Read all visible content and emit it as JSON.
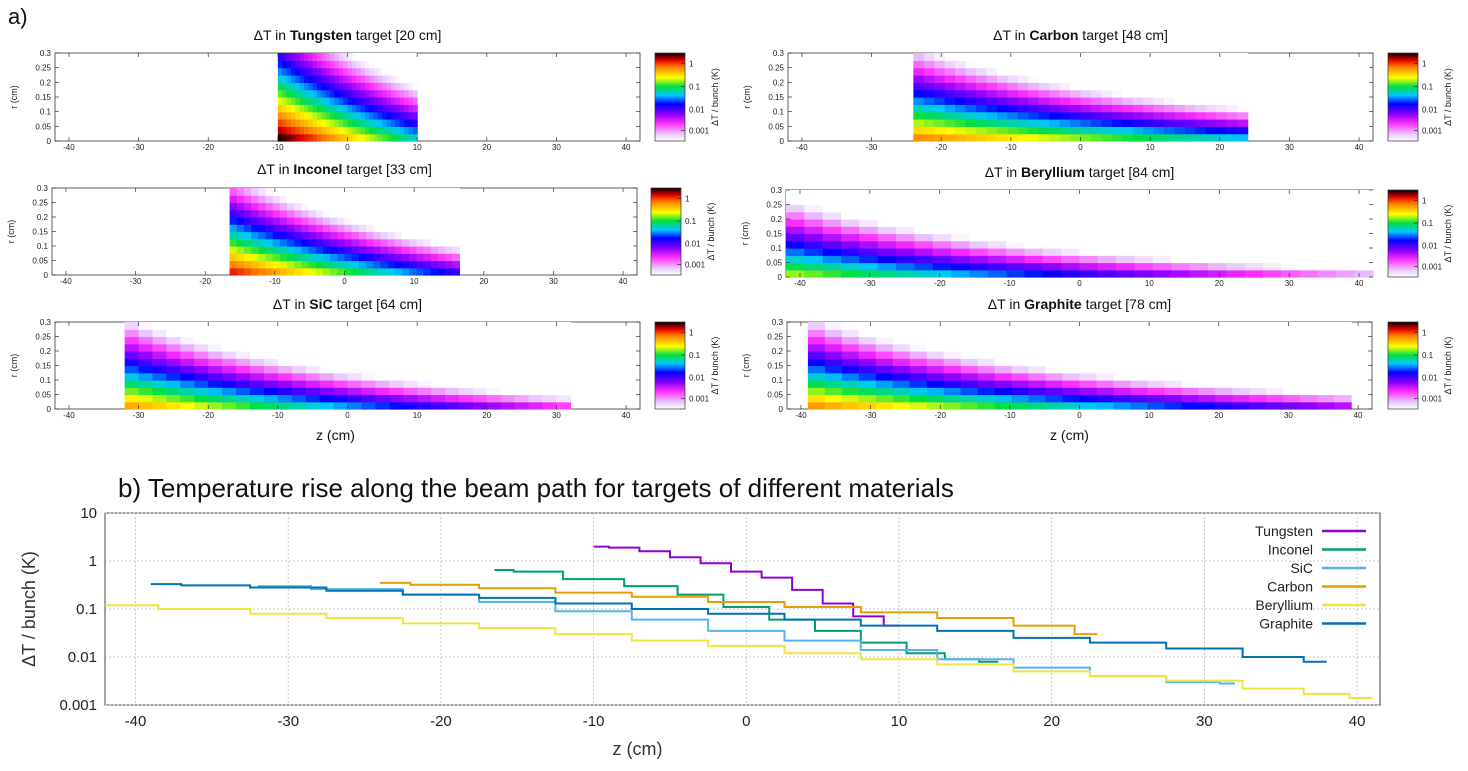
{
  "part_a_label": "a)",
  "chart_data": [
    {
      "type": "heatmap",
      "title_prefix": "ΔT in ",
      "material": "Tungsten",
      "title_suffix": " target [20 cm]",
      "zmin": -10,
      "zmax": 10,
      "peak": 1.2,
      "decay": 0.17,
      "rdecay": 0.06,
      "xlabel": "",
      "ylabel": "r (cm)",
      "xlim": [
        -42,
        42
      ],
      "ylim": [
        0,
        0.3
      ],
      "xticks": [
        "-40",
        "-30",
        "-20",
        "-10",
        "0",
        "10",
        "20",
        "30",
        "40"
      ],
      "yticks": [
        "0",
        "0.05",
        "0.1",
        "0.15",
        "0.2",
        "0.25",
        "0.3"
      ],
      "colorbar_label": "ΔT / bunch (K)",
      "colorbar_ticks": [
        "1",
        "0.1",
        "0.01",
        "0.001"
      ]
    },
    {
      "type": "heatmap",
      "title_prefix": "ΔT in ",
      "material": "Carbon",
      "title_suffix": " target [48 cm]",
      "zmin": -24,
      "zmax": 24,
      "peak": 0.35,
      "decay": 0.045,
      "rdecay": 0.05,
      "xlabel": "",
      "ylabel": "r (cm)",
      "xlim": [
        -42,
        42
      ],
      "ylim": [
        0,
        0.3
      ],
      "xticks": [
        "-40",
        "-30",
        "-20",
        "-10",
        "0",
        "10",
        "20",
        "30",
        "40"
      ],
      "yticks": [
        "0",
        "0.05",
        "0.1",
        "0.15",
        "0.2",
        "0.25",
        "0.3"
      ],
      "colorbar_label": "ΔT / bunch (K)",
      "colorbar_ticks": [
        "1",
        "0.1",
        "0.01",
        "0.001"
      ]
    },
    {
      "type": "heatmap",
      "title_prefix": "ΔT in ",
      "material": "Inconel",
      "title_suffix": " target [33 cm]",
      "zmin": -16.5,
      "zmax": 16.5,
      "peak": 0.65,
      "decay": 0.12,
      "rdecay": 0.05,
      "xlabel": "",
      "ylabel": "r (cm)",
      "xlim": [
        -42,
        42
      ],
      "ylim": [
        0,
        0.3
      ],
      "xticks": [
        "-40",
        "-30",
        "-20",
        "-10",
        "0",
        "10",
        "20",
        "30",
        "40"
      ],
      "yticks": [
        "0",
        "0.05",
        "0.1",
        "0.15",
        "0.2",
        "0.25",
        "0.3"
      ],
      "colorbar_label": "ΔT / bunch (K)",
      "colorbar_ticks": [
        "1",
        "0.1",
        "0.01",
        "0.001"
      ]
    },
    {
      "type": "heatmap",
      "title_prefix": "ΔT in ",
      "material": "Beryllium",
      "title_suffix": " target [84 cm]",
      "zmin": -42,
      "zmax": 42,
      "peak": 0.12,
      "decay": 0.05,
      "rdecay": 0.05,
      "xlabel": "",
      "ylabel": "r (cm)",
      "xlim": [
        -42,
        42
      ],
      "ylim": [
        0,
        0.3
      ],
      "xticks": [
        "-40",
        "-30",
        "-20",
        "-10",
        "0",
        "10",
        "20",
        "30",
        "40"
      ],
      "yticks": [
        "0",
        "0.05",
        "0.1",
        "0.15",
        "0.2",
        "0.25",
        "0.3"
      ],
      "colorbar_label": "ΔT / bunch (K)",
      "colorbar_ticks": [
        "1",
        "0.1",
        "0.01",
        "0.001"
      ]
    },
    {
      "type": "heatmap",
      "title_prefix": "ΔT in ",
      "material": "SiC",
      "title_suffix": " target [64 cm]",
      "zmin": -32,
      "zmax": 32,
      "peak": 0.3,
      "decay": 0.07,
      "rdecay": 0.05,
      "xlabel": "z (cm)",
      "ylabel": "r (cm)",
      "xlim": [
        -42,
        42
      ],
      "ylim": [
        0,
        0.3
      ],
      "xticks": [
        "-40",
        "-30",
        "-20",
        "-10",
        "0",
        "10",
        "20",
        "30",
        "40"
      ],
      "yticks": [
        "0",
        "0.05",
        "0.1",
        "0.15",
        "0.2",
        "0.25",
        "0.3"
      ],
      "colorbar_label": "ΔT / bunch (K)",
      "colorbar_ticks": [
        "1",
        "0.1",
        "0.01",
        "0.001"
      ]
    },
    {
      "type": "heatmap",
      "title_prefix": "ΔT in ",
      "material": "Graphite",
      "title_suffix": " target [78 cm]",
      "zmin": -39,
      "zmax": 39,
      "peak": 0.33,
      "decay": 0.05,
      "rdecay": 0.05,
      "xlabel": "z (cm)",
      "ylabel": "r (cm)",
      "xlim": [
        -42,
        42
      ],
      "ylim": [
        0,
        0.3
      ],
      "xticks": [
        "-40",
        "-30",
        "-20",
        "-10",
        "0",
        "10",
        "20",
        "30",
        "40"
      ],
      "yticks": [
        "0",
        "0.05",
        "0.1",
        "0.15",
        "0.2",
        "0.25",
        "0.3"
      ],
      "colorbar_label": "ΔT / bunch (K)",
      "colorbar_ticks": [
        "1",
        "0.1",
        "0.01",
        "0.001"
      ]
    },
    {
      "type": "line",
      "title": "b) Temperature rise along the beam path for targets of different materials",
      "xlabel": "z (cm)",
      "ylabel": "ΔT / bunch (K)",
      "xlim": [
        -42,
        41.5
      ],
      "ylim": [
        0.001,
        10
      ],
      "yscale": "log",
      "xticks": [
        "-40",
        "-30",
        "-20",
        "-10",
        "0",
        "10",
        "20",
        "30",
        "40"
      ],
      "yticks": [
        "10",
        "1",
        "0.1",
        "0.01",
        "0.001"
      ],
      "series": [
        {
          "name": "Tungsten",
          "color": "#9400d3",
          "points": [
            [
              -10,
              2.0
            ],
            [
              -8,
              1.9
            ],
            [
              -6,
              1.6
            ],
            [
              -4,
              1.2
            ],
            [
              -2,
              0.9
            ],
            [
              0,
              0.6
            ],
            [
              2,
              0.45
            ],
            [
              4,
              0.25
            ],
            [
              6,
              0.13
            ],
            [
              8,
              0.07
            ],
            [
              10,
              0.045
            ]
          ]
        },
        {
          "name": "Inconel",
          "color": "#009e73",
          "points": [
            [
              -16.5,
              0.65
            ],
            [
              -14,
              0.6
            ],
            [
              -10,
              0.42
            ],
            [
              -6,
              0.3
            ],
            [
              -3,
              0.2
            ],
            [
              0,
              0.11
            ],
            [
              3,
              0.06
            ],
            [
              6,
              0.035
            ],
            [
              9,
              0.02
            ],
            [
              12,
              0.012
            ],
            [
              14,
              0.009
            ],
            [
              16.5,
              0.008
            ]
          ]
        },
        {
          "name": "SiC",
          "color": "#56b4e9",
          "points": [
            [
              -32,
              0.3
            ],
            [
              -25,
              0.26
            ],
            [
              -20,
              0.2
            ],
            [
              -15,
              0.14
            ],
            [
              -10,
              0.09
            ],
            [
              -5,
              0.06
            ],
            [
              0,
              0.035
            ],
            [
              5,
              0.022
            ],
            [
              10,
              0.014
            ],
            [
              15,
              0.009
            ],
            [
              20,
              0.006
            ],
            [
              25,
              0.004
            ],
            [
              30,
              0.003
            ],
            [
              32,
              0.0028
            ]
          ]
        },
        {
          "name": "Carbon",
          "color": "#e69f00",
          "points": [
            [
              -24,
              0.35
            ],
            [
              -20,
              0.32
            ],
            [
              -15,
              0.27
            ],
            [
              -10,
              0.22
            ],
            [
              -5,
              0.18
            ],
            [
              0,
              0.14
            ],
            [
              5,
              0.11
            ],
            [
              10,
              0.085
            ],
            [
              15,
              0.065
            ],
            [
              20,
              0.045
            ],
            [
              23,
              0.03
            ]
          ]
        },
        {
          "name": "Beryllium",
          "color": "#f0e442",
          "points": [
            [
              -42,
              0.12
            ],
            [
              -35,
              0.1
            ],
            [
              -30,
              0.08
            ],
            [
              -25,
              0.065
            ],
            [
              -20,
              0.05
            ],
            [
              -15,
              0.04
            ],
            [
              -10,
              0.03
            ],
            [
              -5,
              0.022
            ],
            [
              0,
              0.017
            ],
            [
              5,
              0.012
            ],
            [
              10,
              0.009
            ],
            [
              15,
              0.007
            ],
            [
              20,
              0.005
            ],
            [
              25,
              0.004
            ],
            [
              30,
              0.0032
            ],
            [
              35,
              0.0022
            ],
            [
              38,
              0.0017
            ],
            [
              41,
              0.0014
            ]
          ]
        },
        {
          "name": "Graphite",
          "color": "#0072b2",
          "points": [
            [
              -39,
              0.33
            ],
            [
              -35,
              0.31
            ],
            [
              -30,
              0.28
            ],
            [
              -25,
              0.24
            ],
            [
              -20,
              0.2
            ],
            [
              -15,
              0.17
            ],
            [
              -10,
              0.13
            ],
            [
              -5,
              0.1
            ],
            [
              0,
              0.08
            ],
            [
              5,
              0.06
            ],
            [
              10,
              0.045
            ],
            [
              15,
              0.035
            ],
            [
              20,
              0.025
            ],
            [
              25,
              0.02
            ],
            [
              30,
              0.015
            ],
            [
              35,
              0.01
            ],
            [
              38,
              0.008
            ]
          ]
        }
      ]
    }
  ]
}
